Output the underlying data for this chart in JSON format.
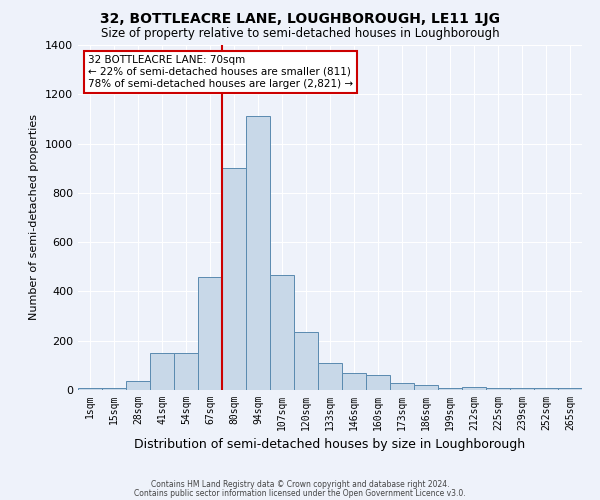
{
  "title1": "32, BOTTLEACRE LANE, LOUGHBOROUGH, LE11 1JG",
  "title2": "Size of property relative to semi-detached houses in Loughborough",
  "xlabel": "Distribution of semi-detached houses by size in Loughborough",
  "ylabel": "Number of semi-detached properties",
  "footnote1": "Contains HM Land Registry data © Crown copyright and database right 2024.",
  "footnote2": "Contains public sector information licensed under the Open Government Licence v3.0.",
  "bin_labels": [
    "1sqm",
    "15sqm",
    "28sqm",
    "41sqm",
    "54sqm",
    "67sqm",
    "80sqm",
    "94sqm",
    "107sqm",
    "120sqm",
    "133sqm",
    "146sqm",
    "160sqm",
    "173sqm",
    "186sqm",
    "199sqm",
    "212sqm",
    "225sqm",
    "239sqm",
    "252sqm",
    "265sqm"
  ],
  "bin_values": [
    10,
    10,
    35,
    150,
    150,
    460,
    900,
    1110,
    465,
    235,
    110,
    70,
    60,
    30,
    22,
    10,
    12,
    10,
    8,
    10,
    10
  ],
  "bar_color": "#c8d8e8",
  "bar_edge_color": "#5a8ab0",
  "property_line_color": "#cc0000",
  "annotation_text": "32 BOTTLEACRE LANE: 70sqm\n← 22% of semi-detached houses are smaller (811)\n78% of semi-detached houses are larger (2,821) →",
  "annotation_box_color": "#ffffff",
  "annotation_box_edge_color": "#cc0000",
  "background_color": "#eef2fa",
  "ylim": [
    0,
    1400
  ],
  "yticks": [
    0,
    200,
    400,
    600,
    800,
    1000,
    1200,
    1400
  ]
}
